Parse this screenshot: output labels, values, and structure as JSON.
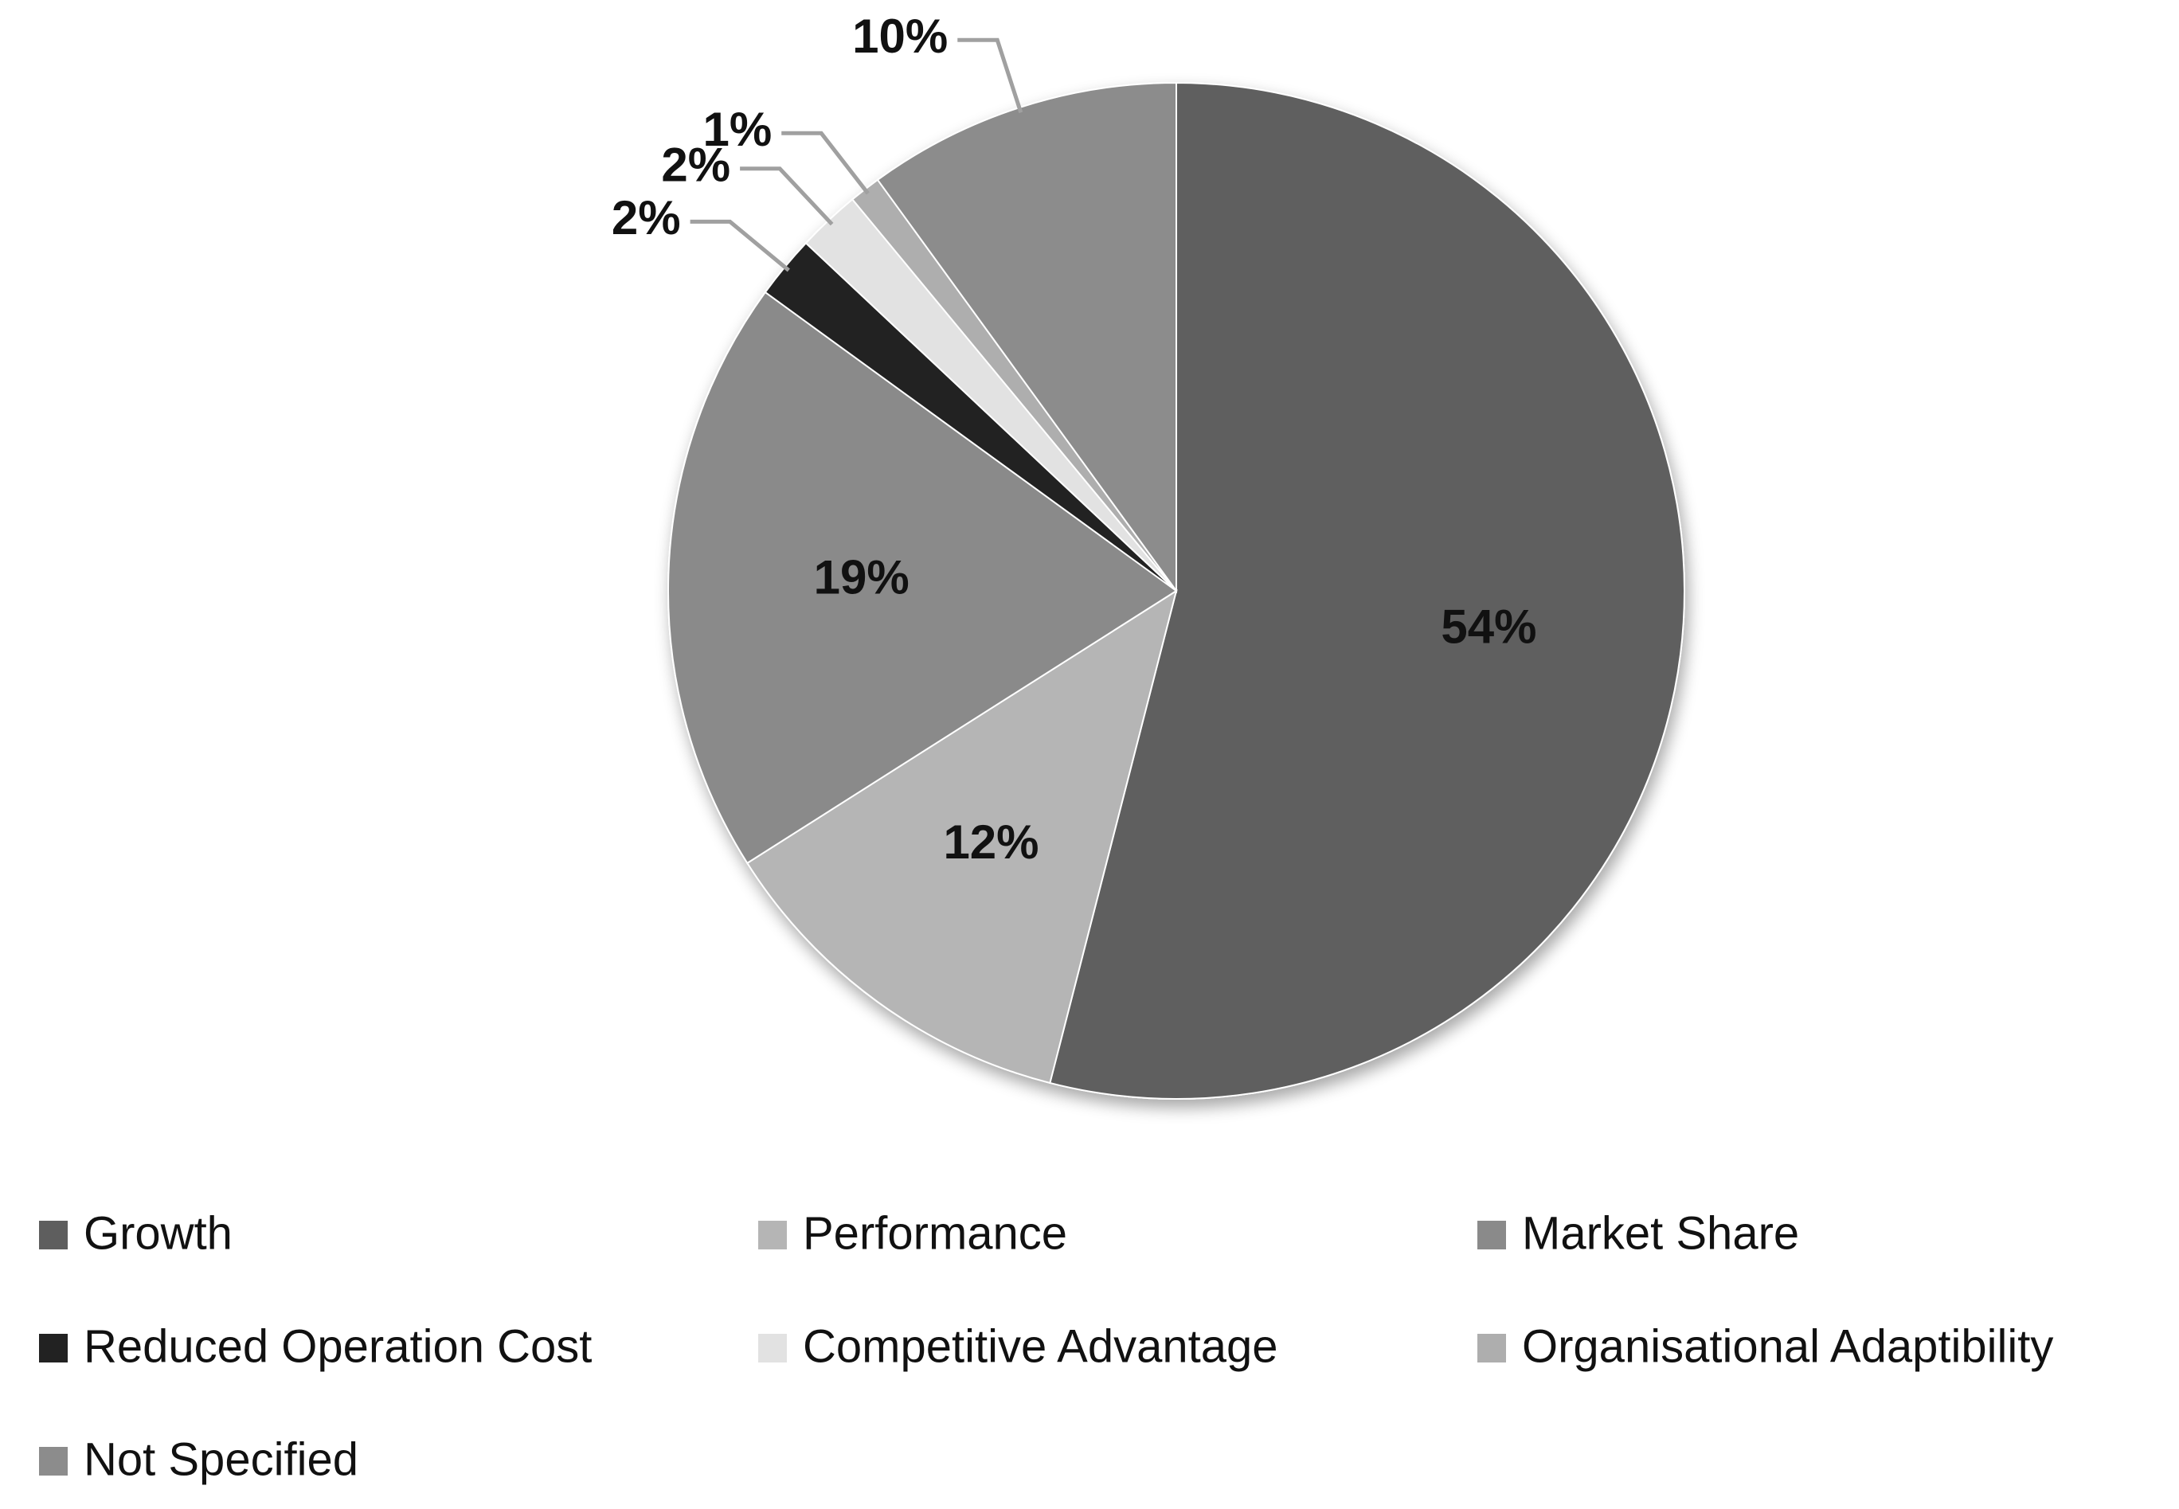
{
  "chart_data": {
    "type": "pie",
    "categories": [
      "Growth",
      "Performance",
      "Market Share",
      "Reduced Operation Cost",
      "Competitive Advantage",
      "Organisational Adaptibility",
      "Not Specified"
    ],
    "values": [
      54,
      12,
      19,
      2,
      2,
      1,
      10
    ],
    "value_labels": [
      "54%",
      "12%",
      "19%",
      "2%",
      "2%",
      "1%",
      "10%"
    ],
    "colors": [
      "#5e5e5e",
      "#b5b5b5",
      "#8a8a8a",
      "#222222",
      "#e2e2e2",
      "#aeaeae",
      "#8c8c8c"
    ],
    "legend": "bottom"
  }
}
